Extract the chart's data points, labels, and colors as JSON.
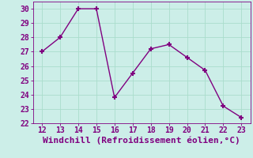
{
  "x": [
    12,
    13,
    14,
    15,
    16,
    17,
    18,
    19,
    20,
    21,
    22,
    23
  ],
  "y": [
    27,
    28,
    30,
    30,
    23.8,
    25.5,
    27.2,
    27.5,
    26.6,
    25.7,
    23.2,
    22.4
  ],
  "xlim": [
    11.5,
    23.5
  ],
  "ylim": [
    22,
    30.5
  ],
  "xticks": [
    12,
    13,
    14,
    15,
    16,
    17,
    18,
    19,
    20,
    21,
    22,
    23
  ],
  "yticks": [
    22,
    23,
    24,
    25,
    26,
    27,
    28,
    29,
    30
  ],
  "xlabel": "Windchill (Refroidissement éolien,°C)",
  "line_color": "#800080",
  "marker": "+",
  "marker_size": 5,
  "linewidth": 1.0,
  "background_color": "#cceee8",
  "grid_color": "#aaddcc",
  "tick_fontsize": 7,
  "xlabel_fontsize": 8
}
